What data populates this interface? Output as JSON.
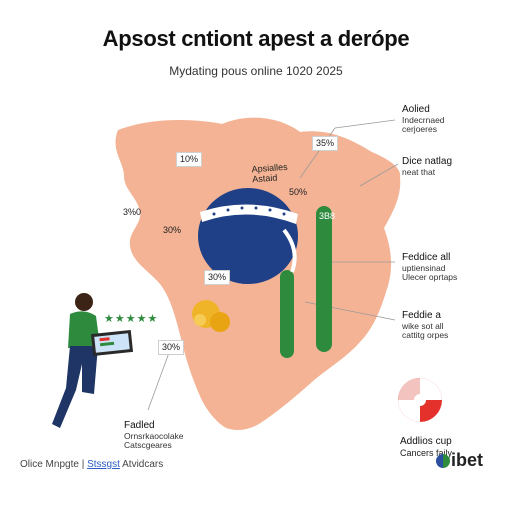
{
  "header": {
    "title": "Apsost cntiont apest a derópe",
    "subtitle": "Mydating pous online 1020 2025"
  },
  "map_badges": {
    "b1": "10%",
    "b2": "3%0",
    "b3": "30%",
    "b4": "30%",
    "b5": "30%",
    "b6": "30%",
    "b7": "35%",
    "b8": "50%",
    "b9": "3B8"
  },
  "ball_caption": {
    "line1": "Apsialles",
    "line2": "Astaid"
  },
  "right_notes": {
    "n1": {
      "h": "Aolied",
      "l1": "Indecrnaed",
      "l2": "cerjoeres"
    },
    "n2": {
      "h": "Dice natlag",
      "l1": "neat that"
    },
    "n3": {
      "h": "Feddice all",
      "l1": "uptiensinad",
      "l2": "Ulecer oprtaps"
    },
    "n4": {
      "h": "Feddie a",
      "l1": "wike sot all",
      "l2": "cattitg orpes"
    }
  },
  "left_note": {
    "h": "Fadled",
    "l1": "Ornsrkaocolake",
    "l2": "Catscgeares"
  },
  "coin_caption": {
    "h": "Addlios cup",
    "l1": "Cancers faily"
  },
  "footer": {
    "left_a": "Olice Mnpgte",
    "sep": "|",
    "link": "Stssgst",
    "left_b": "Atvidcars"
  },
  "brand": {
    "name": "ibet"
  },
  "colors": {
    "map": "#f4b394",
    "ball": "#1f3f86",
    "bar": "#2e8b3e",
    "accent": "#e4312b"
  }
}
